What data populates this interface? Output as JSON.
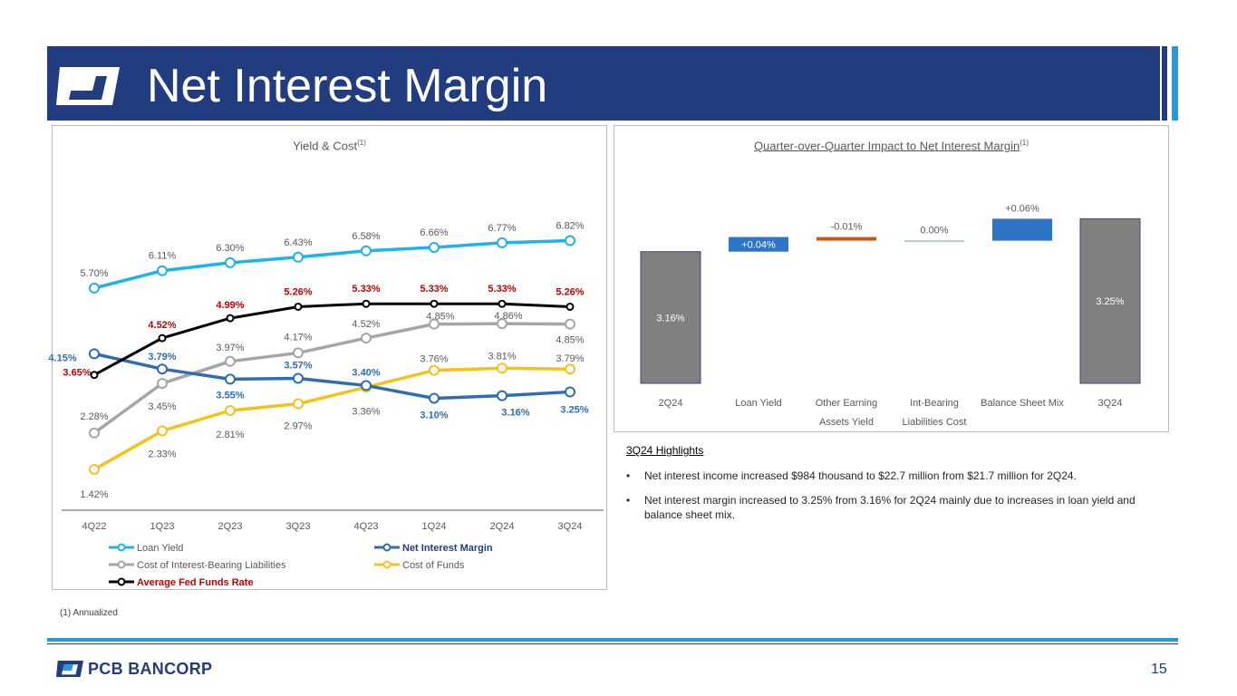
{
  "header": {
    "title": "Net Interest Margin"
  },
  "left_panel": {
    "title": "Yield & Cost",
    "title_sup": "(1)"
  },
  "right_panel": {
    "title": "Quarter-over-Quarter Impact to Net Interest Margin",
    "title_sup": "(1)"
  },
  "highlights": {
    "title": "3Q24 Highlights",
    "bullets": [
      "Net interest income increased $984 thousand to $22.7 million from $21.7 million for 2Q24.",
      "Net interest margin increased to 3.25% from 3.16% for 2Q24 mainly due to increases in loan yield and balance sheet mix."
    ],
    "bullet_char": "•"
  },
  "footnote": "(1)    Annualized",
  "footer": {
    "brand": "PCB BANCORP",
    "page_number": "15"
  },
  "colors": {
    "navy": "#223d7f",
    "light_blue": "#1f9be0"
  },
  "chart_data": [
    {
      "type": "line",
      "title": "Yield & Cost",
      "categories": [
        "4Q22",
        "1Q23",
        "2Q23",
        "3Q23",
        "4Q23",
        "1Q24",
        "2Q24",
        "3Q24"
      ],
      "ylim": [
        0.5,
        8.5
      ],
      "series": [
        {
          "name": "Loan Yield",
          "color": "#1fb2ec",
          "label_color": "#595959",
          "bold": false,
          "values": [
            5.7,
            6.11,
            6.3,
            6.43,
            6.58,
            6.66,
            6.77,
            6.82
          ],
          "labels": [
            "5.70%",
            "6.11%",
            "6.30%",
            "6.43%",
            "6.58%",
            "6.66%",
            "6.77%",
            "6.82%"
          ]
        },
        {
          "name": "Net Interest Margin",
          "color": "#2e6db4",
          "label_color": "#2e6db4",
          "bold": true,
          "values": [
            4.15,
            3.79,
            3.55,
            3.57,
            3.4,
            3.1,
            3.16,
            3.25
          ],
          "labels": [
            "4.15%",
            "3.79%",
            "3.55%",
            "3.57%",
            "3.40%",
            "3.10%",
            "3.16%",
            "3.25%"
          ]
        },
        {
          "name": "Cost of Interest-Bearing Liabilities",
          "color": "#a6a6a6",
          "label_color": "#595959",
          "bold": false,
          "values": [
            2.28,
            3.45,
            3.97,
            4.17,
            4.52,
            4.85,
            4.86,
            4.85
          ],
          "labels": [
            "2.28%",
            "3.45%",
            "3.97%",
            "4.17%",
            "4.52%",
            "4.85%",
            "4.86%",
            "4.85%"
          ]
        },
        {
          "name": "Cost of Funds",
          "color": "#f5c21b",
          "label_color": "#595959",
          "bold": false,
          "values": [
            1.42,
            2.33,
            2.81,
            2.97,
            3.36,
            3.76,
            3.81,
            3.79
          ],
          "labels": [
            "1.42%",
            "2.33%",
            "2.81%",
            "2.97%",
            "3.36%",
            "3.76%",
            "3.81%",
            "3.79%"
          ]
        },
        {
          "name": "Average Fed Funds Rate",
          "color": "#000000",
          "label_color": "#c00000",
          "bold": true,
          "values": [
            3.65,
            4.52,
            4.99,
            5.26,
            5.33,
            5.33,
            5.33,
            5.26
          ],
          "labels": [
            "3.65%",
            "4.52%",
            "4.99%",
            "5.26%",
            "5.33%",
            "5.33%",
            "5.33%",
            "5.26%"
          ]
        }
      ],
      "legend": [
        {
          "name": "Loan Yield",
          "color": "#1fb2ec",
          "bold": false,
          "text_color": "#595959"
        },
        {
          "name": "Net Interest Margin",
          "color": "#2e6db4",
          "bold": true,
          "text_color": "#223d7f"
        },
        {
          "name": "Cost of Interest-Bearing Liabilities",
          "color": "#a6a6a6",
          "bold": false,
          "text_color": "#595959"
        },
        {
          "name": "Cost of Funds",
          "color": "#f5c21b",
          "bold": false,
          "text_color": "#595959"
        },
        {
          "name": "Average Fed Funds Rate",
          "color": "#000000",
          "bold": true,
          "text_color": "#c00000"
        }
      ],
      "legend_position": "bottom"
    },
    {
      "type": "waterfall",
      "title": "Quarter-over-Quarter Impact to Net Interest Margin",
      "categories": [
        [
          "2Q24"
        ],
        [
          "Loan Yield"
        ],
        [
          "Other Earning",
          "Assets Yield"
        ],
        [
          "Int-Bearing",
          "Liabilities Cost"
        ],
        [
          "Balance Sheet Mix"
        ],
        [
          "3Q24"
        ]
      ],
      "ylim": [
        2.8,
        3.35
      ],
      "steps": [
        {
          "kind": "total",
          "value": 3.16,
          "label": "3.16%",
          "color": "#808080",
          "label_inside": true
        },
        {
          "kind": "delta",
          "value": 0.04,
          "label": "+0.04%",
          "color": "#2e75c7",
          "label_inside": true
        },
        {
          "kind": "delta",
          "value": -0.01,
          "label": "-0.01%",
          "color": "#c55a11",
          "label_inside": false
        },
        {
          "kind": "delta",
          "value": 0.0,
          "label": "0.00%",
          "color": "#5b9bd5",
          "label_inside": false
        },
        {
          "kind": "delta",
          "value": 0.06,
          "label": "+0.06%",
          "color": "#2e75c7",
          "label_inside": false
        },
        {
          "kind": "total",
          "value": 3.25,
          "label": "3.25%",
          "color": "#808080",
          "label_inside": true
        }
      ]
    }
  ]
}
